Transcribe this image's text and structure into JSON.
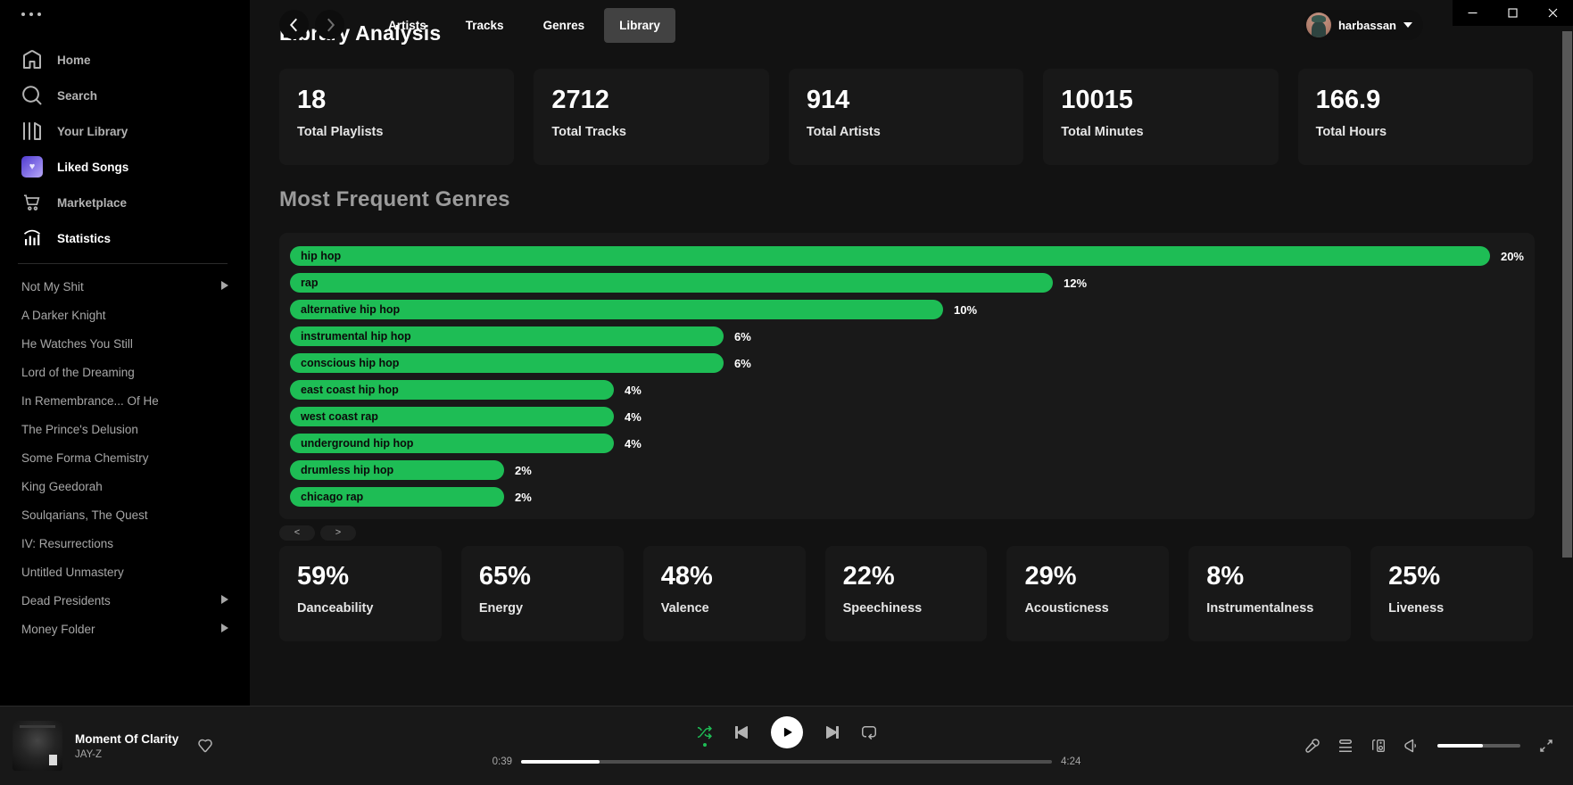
{
  "titlebar": {
    "tabs": [
      {
        "label": "Artists",
        "active": false
      },
      {
        "label": "Tracks",
        "active": false
      },
      {
        "label": "Genres",
        "active": false
      },
      {
        "label": "Library",
        "active": true
      }
    ],
    "user": {
      "name": "harbassan"
    },
    "window_controls": [
      "minimize",
      "maximize",
      "close"
    ]
  },
  "sidebar": {
    "menu": [
      {
        "icon": "home-icon",
        "label": "Home",
        "active": false
      },
      {
        "icon": "search-icon",
        "label": "Search",
        "active": false
      },
      {
        "icon": "your-library-icon",
        "label": "Your Library",
        "active": false
      },
      {
        "icon": "liked-songs-icon",
        "label": "Liked Songs",
        "active": true
      },
      {
        "icon": "marketplace-cart-icon",
        "label": "Marketplace",
        "active": false
      },
      {
        "icon": "statistics-icon",
        "label": "Statistics",
        "active": true
      }
    ],
    "playlists": [
      {
        "label": "Not My Shit",
        "expandable": true
      },
      {
        "label": "A Darker Knight",
        "expandable": false
      },
      {
        "label": "He Watches You Still",
        "expandable": false
      },
      {
        "label": "Lord of the Dreaming",
        "expandable": false
      },
      {
        "label": "In Remembrance... Of He",
        "expandable": false
      },
      {
        "label": "The Prince's Delusion",
        "expandable": false
      },
      {
        "label": "Some Forma Chemistry",
        "expandable": false
      },
      {
        "label": "King Geedorah",
        "expandable": false
      },
      {
        "label": "Soulqarians, The Quest",
        "expandable": false
      },
      {
        "label": "IV: Resurrections",
        "expandable": false
      },
      {
        "label": "Untitled Unmastery",
        "expandable": false
      },
      {
        "label": "Dead Presidents",
        "expandable": true
      },
      {
        "label": "Money Folder",
        "expandable": true
      }
    ]
  },
  "main": {
    "title": "Library Analysis",
    "stats": [
      {
        "value": "18",
        "label": "Total Playlists"
      },
      {
        "value": "2712",
        "label": "Total Tracks"
      },
      {
        "value": "914",
        "label": "Total Artists"
      },
      {
        "value": "10015",
        "label": "Total Minutes"
      },
      {
        "value": "166.9",
        "label": "Total Hours"
      }
    ],
    "genres_heading": "Most Frequent Genres",
    "pager": {
      "prev": "<",
      "next": ">"
    },
    "features": [
      {
        "value": "59%",
        "label": "Danceability"
      },
      {
        "value": "65%",
        "label": "Energy"
      },
      {
        "value": "48%",
        "label": "Valence"
      },
      {
        "value": "22%",
        "label": "Speechiness"
      },
      {
        "value": "29%",
        "label": "Acousticness"
      },
      {
        "value": "8%",
        "label": "Instrumentalness"
      },
      {
        "value": "25%",
        "label": "Liveness"
      }
    ]
  },
  "chart_data": {
    "type": "bar",
    "orientation": "horizontal",
    "title": "Most Frequent Genres",
    "categories": [
      "hip hop",
      "rap",
      "alternative hip hop",
      "instrumental hip hop",
      "conscious hip hop",
      "east coast hip hop",
      "west coast rap",
      "underground hip hop",
      "drumless hip hop",
      "chicago rap"
    ],
    "values": [
      20,
      12,
      10,
      6,
      6,
      4,
      4,
      4,
      2,
      2
    ],
    "value_labels": [
      "20%",
      "12%",
      "10%",
      "6%",
      "6%",
      "4%",
      "4%",
      "4%",
      "2%",
      "2%"
    ],
    "unit": "%",
    "xlim": [
      0,
      20
    ],
    "bar_color": "#1ebd55",
    "category_label_position": "inside-left",
    "grid": false,
    "legend": false
  },
  "player": {
    "track": {
      "title": "Moment Of Clarity",
      "artist": "JAY-Z"
    },
    "elapsed": "0:39",
    "duration": "4:24",
    "progress_pct": 14.8,
    "volume_pct": 55,
    "shuffle_active": true
  },
  "colors": {
    "accent": "#1ebd55",
    "background": "#121212",
    "sidebar": "#000000",
    "card": "#181818",
    "chart_panel": "#191919",
    "library_tab_bg": "#424242"
  }
}
